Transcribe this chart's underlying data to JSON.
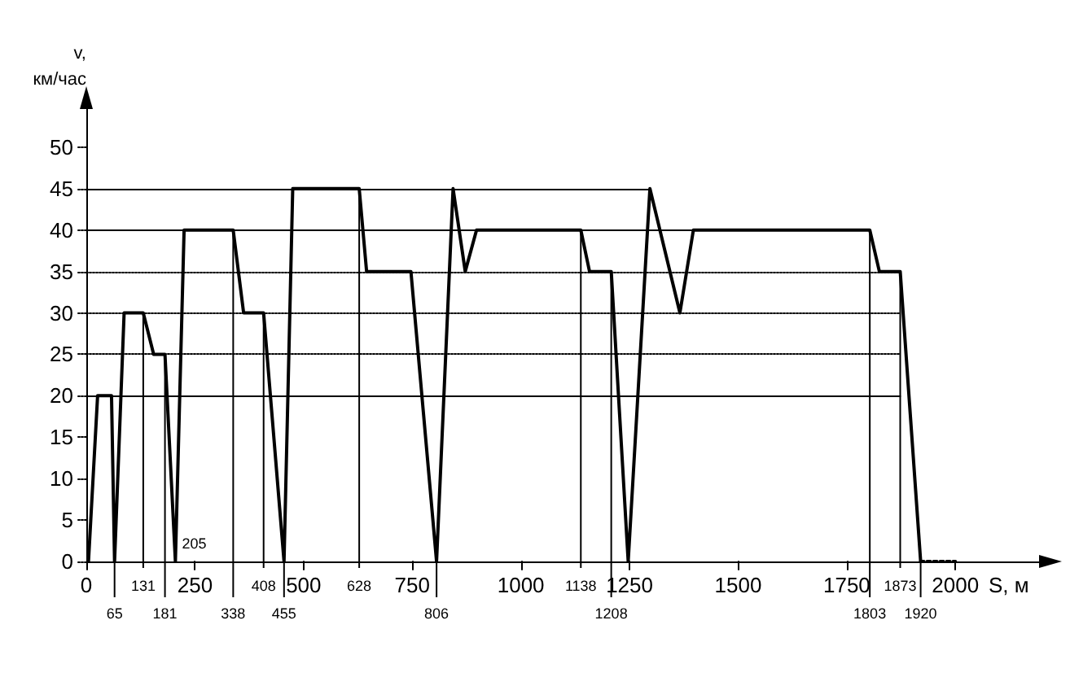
{
  "chart_data": {
    "type": "line",
    "xlabel": "S, м",
    "ylabel": "v,\nкм/час",
    "series": [
      {
        "color": "#000000",
        "line_style": "solid",
        "x": [
          5,
          26,
          58,
          65,
          87,
          131,
          155,
          181,
          205,
          225,
          338,
          362,
          408,
          455,
          475,
          628,
          645,
          747,
          806,
          844,
          872,
          898,
          1138,
          1158,
          1208,
          1247,
          1297,
          1366,
          1397,
          1803,
          1825,
          1873,
          1920
        ],
        "values": [
          0,
          20,
          20,
          0,
          30,
          30,
          25,
          25,
          0,
          40,
          40,
          30,
          30,
          0,
          45,
          45,
          35,
          35,
          0,
          45,
          35,
          40,
          40,
          35,
          35,
          0,
          45,
          30,
          40,
          40,
          35,
          35,
          0
        ]
      },
      {
        "color": "#000000",
        "line_style": "dotted",
        "x": [
          1920,
          2000
        ],
        "values": [
          0,
          0
        ]
      }
    ],
    "xlim": [
      0,
      2200
    ],
    "xticks": [
      0,
      250,
      500,
      750,
      1000,
      1250,
      1500,
      1750,
      2000
    ],
    "ylim": [
      0,
      55
    ],
    "yticks": [
      0,
      5,
      10,
      15,
      20,
      25,
      30,
      35,
      40,
      45,
      50
    ],
    "ref_lines": [
      {
        "axis": "x",
        "value": 65,
        "label": "65"
      },
      {
        "axis": "x",
        "value": 131,
        "label": "131"
      },
      {
        "axis": "x",
        "value": 181,
        "label": "181"
      },
      {
        "axis": "x",
        "value": 338,
        "label": "338"
      },
      {
        "axis": "x",
        "value": 408,
        "label": "408"
      },
      {
        "axis": "x",
        "value": 455,
        "label": "455"
      },
      {
        "axis": "x",
        "value": 628,
        "label": "628"
      },
      {
        "axis": "x",
        "value": 806,
        "label": "806"
      },
      {
        "axis": "x",
        "value": 1138,
        "label": "1138"
      },
      {
        "axis": "x",
        "value": 1208,
        "label": "1208"
      },
      {
        "axis": "x",
        "value": 1803,
        "label": "1803"
      },
      {
        "axis": "x",
        "value": 1873,
        "label": "1873"
      },
      {
        "axis": "x",
        "value": 1920,
        "label": "1920"
      },
      {
        "axis": "y",
        "value": 20,
        "line_style": "solid"
      },
      {
        "axis": "y",
        "value": 25,
        "line_style": "dotted"
      },
      {
        "axis": "y",
        "value": 30,
        "line_style": "dotted"
      },
      {
        "axis": "y",
        "value": 35,
        "line_style": "dotted"
      },
      {
        "axis": "y",
        "value": 40,
        "line_style": "solid"
      },
      {
        "axis": "y",
        "value": 45,
        "line_style": "solid"
      }
    ],
    "annotations": [
      {
        "text": "205",
        "x": 205,
        "y": 0
      }
    ],
    "grid": false,
    "marker": "none"
  }
}
